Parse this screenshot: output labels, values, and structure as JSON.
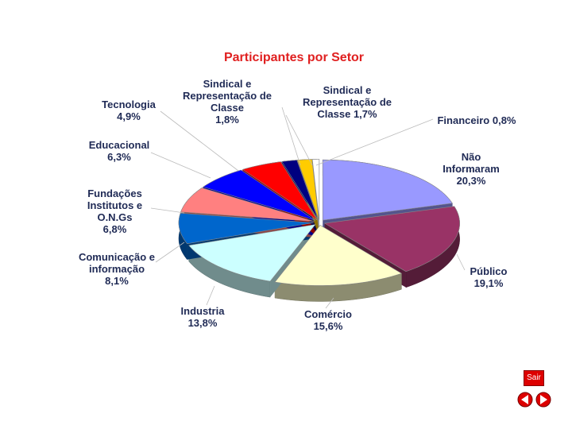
{
  "chart_data": {
    "type": "pie",
    "title": "Participantes por Setor",
    "categories": [
      "Não Informaram",
      "Público",
      "Comércio",
      "Industria",
      "Comunicação e informação",
      "Fundações Institutos e O.N.Gs",
      "Educacional",
      "Tecnologia",
      "Sindical e Representação de Classe",
      "Sindical e Representação de Classe",
      "Financeiro"
    ],
    "values": [
      20.3,
      19.1,
      15.6,
      13.8,
      8.1,
      6.8,
      6.3,
      4.9,
      1.8,
      1.7,
      0.8
    ],
    "value_labels": [
      "20,3%",
      "19,1%",
      "15,6%",
      "13,8%",
      "8,1%",
      "6,8%",
      "6,3%",
      "4,9%",
      "1,8%",
      "1,7%",
      "0,8%"
    ],
    "colors": [
      "#9999ff",
      "#993366",
      "#ffffcc",
      "#ccffff",
      "#0066cc",
      "#ff8080",
      "#0000ff",
      "#ff0000",
      "#000080",
      "#ffcc00",
      "#ffffff"
    ]
  },
  "buttons": {
    "exit": "Sair"
  }
}
